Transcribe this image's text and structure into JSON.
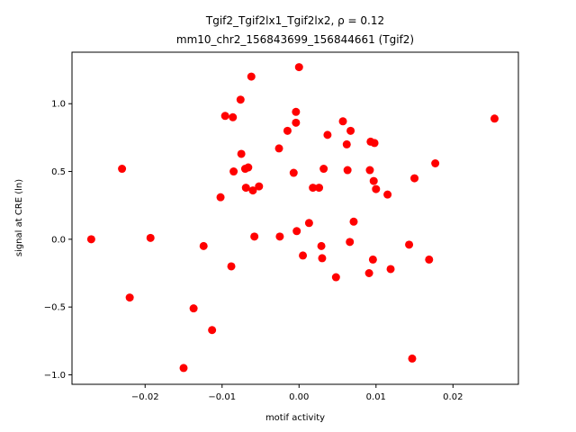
{
  "chart_data": {
    "type": "scatter",
    "title_line1": "Tgif2_Tgif2lx1_Tgif2lx2, ρ = 0.12",
    "title_line2": "mm10_chr2_156843699_156844661 (Tgif2)",
    "xlabel": "motif activity",
    "ylabel": "signal at CRE (ln)",
    "xlim": [
      -0.0295,
      0.0285
    ],
    "ylim": [
      -1.07,
      1.38
    ],
    "xticks": [
      -0.02,
      -0.01,
      0.0,
      0.01,
      0.02
    ],
    "xtick_labels": [
      "−0.02",
      "−0.01",
      "0.00",
      "0.01",
      "0.02"
    ],
    "yticks": [
      -1.0,
      -0.5,
      0.0,
      0.5,
      1.0
    ],
    "ytick_labels": [
      "−1.0",
      "−0.5",
      "0.0",
      "0.5",
      "1.0"
    ],
    "grid": false,
    "marker_color": "#ff0000",
    "points": [
      {
        "x": -0.027,
        "y": 0.0
      },
      {
        "x": -0.023,
        "y": 0.52
      },
      {
        "x": -0.022,
        "y": -0.43
      },
      {
        "x": -0.0193,
        "y": 0.01
      },
      {
        "x": -0.015,
        "y": -0.95
      },
      {
        "x": -0.0137,
        "y": -0.51
      },
      {
        "x": -0.0124,
        "y": -0.05
      },
      {
        "x": -0.0113,
        "y": -0.67
      },
      {
        "x": -0.0102,
        "y": 0.31
      },
      {
        "x": -0.0096,
        "y": 0.91
      },
      {
        "x": -0.0088,
        "y": -0.2
      },
      {
        "x": -0.0086,
        "y": 0.9
      },
      {
        "x": -0.0085,
        "y": 0.5
      },
      {
        "x": -0.0076,
        "y": 1.03
      },
      {
        "x": -0.0075,
        "y": 0.63
      },
      {
        "x": -0.007,
        "y": 0.52
      },
      {
        "x": -0.0069,
        "y": 0.38
      },
      {
        "x": -0.0066,
        "y": 0.53
      },
      {
        "x": -0.0062,
        "y": 1.2
      },
      {
        "x": -0.006,
        "y": 0.36
      },
      {
        "x": -0.0058,
        "y": 0.02
      },
      {
        "x": -0.0052,
        "y": 0.39
      },
      {
        "x": -0.0026,
        "y": 0.67
      },
      {
        "x": -0.0025,
        "y": 0.02
      },
      {
        "x": -0.0015,
        "y": 0.8
      },
      {
        "x": -0.0007,
        "y": 0.49
      },
      {
        "x": -0.0004,
        "y": 0.94
      },
      {
        "x": -0.0004,
        "y": 0.86
      },
      {
        "x": -0.0003,
        "y": 0.06
      },
      {
        "x": 0.0,
        "y": 1.27
      },
      {
        "x": 0.0005,
        "y": -0.12
      },
      {
        "x": 0.0013,
        "y": 0.12
      },
      {
        "x": 0.0018,
        "y": 0.38
      },
      {
        "x": 0.0026,
        "y": 0.38
      },
      {
        "x": 0.0029,
        "y": -0.05
      },
      {
        "x": 0.003,
        "y": -0.14
      },
      {
        "x": 0.0032,
        "y": 0.52
      },
      {
        "x": 0.0037,
        "y": 0.77
      },
      {
        "x": 0.0048,
        "y": -0.28
      },
      {
        "x": 0.0057,
        "y": 0.87
      },
      {
        "x": 0.0062,
        "y": 0.7
      },
      {
        "x": 0.0063,
        "y": 0.51
      },
      {
        "x": 0.0066,
        "y": -0.02
      },
      {
        "x": 0.0067,
        "y": 0.8
      },
      {
        "x": 0.0071,
        "y": 0.13
      },
      {
        "x": 0.0091,
        "y": -0.25
      },
      {
        "x": 0.0092,
        "y": 0.51
      },
      {
        "x": 0.0093,
        "y": 0.72
      },
      {
        "x": 0.0096,
        "y": -0.15
      },
      {
        "x": 0.0097,
        "y": 0.43
      },
      {
        "x": 0.0098,
        "y": 0.71
      },
      {
        "x": 0.01,
        "y": 0.37
      },
      {
        "x": 0.0115,
        "y": 0.33
      },
      {
        "x": 0.0119,
        "y": -0.22
      },
      {
        "x": 0.0143,
        "y": -0.04
      },
      {
        "x": 0.0147,
        "y": -0.88
      },
      {
        "x": 0.015,
        "y": 0.45
      },
      {
        "x": 0.0169,
        "y": -0.15
      },
      {
        "x": 0.0177,
        "y": 0.56
      },
      {
        "x": 0.0254,
        "y": 0.89
      }
    ]
  }
}
